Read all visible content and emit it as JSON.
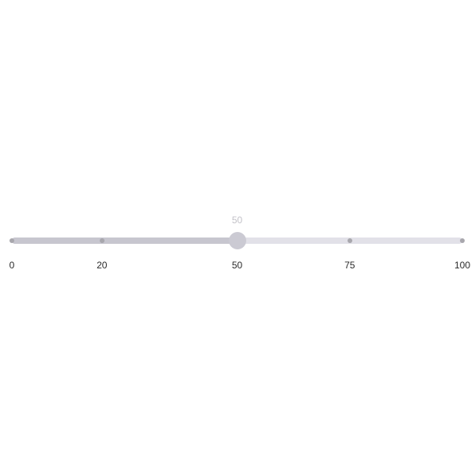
{
  "slider": {
    "min": 0,
    "max": 100,
    "value": 50,
    "value_label": "50",
    "marks": [
      {
        "value": 0,
        "label": "0"
      },
      {
        "value": 20,
        "label": "20"
      },
      {
        "value": 50,
        "label": "50"
      },
      {
        "value": 75,
        "label": "75"
      },
      {
        "value": 100,
        "label": "100"
      }
    ],
    "colors": {
      "rail": "#e2e1e8",
      "track": "#c7c6cf",
      "thumb": "#cbcad3",
      "mark": "#a8a7ad",
      "value_label": "#c3c2c8",
      "mark_label": "#2a2a2a"
    }
  }
}
